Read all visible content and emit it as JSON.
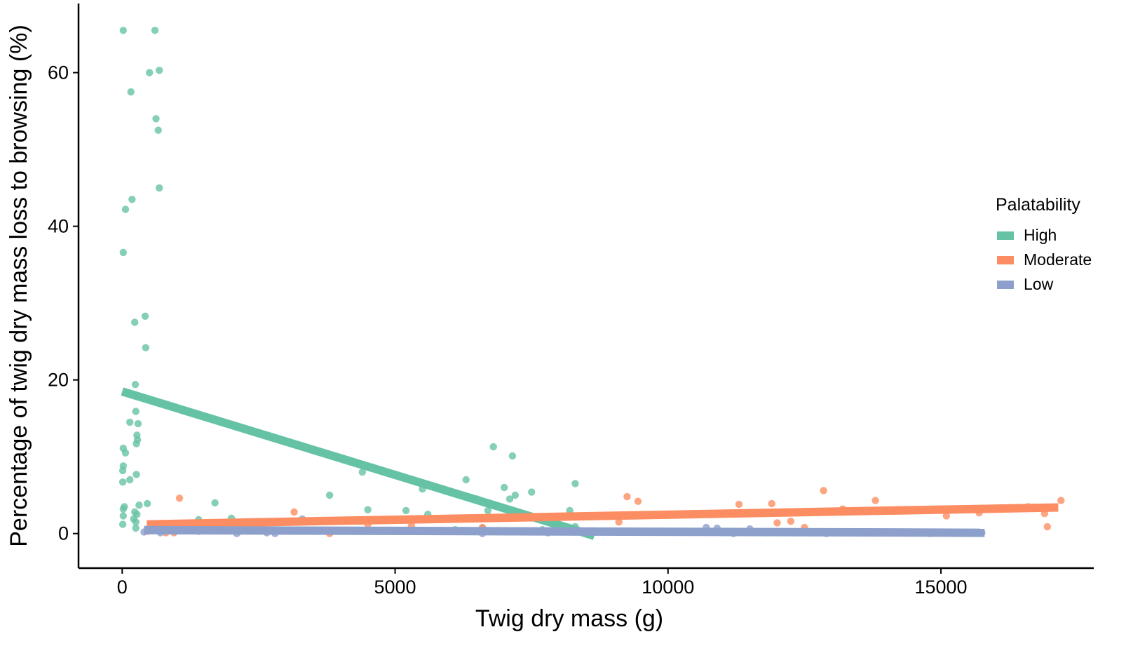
{
  "chart_data": {
    "type": "scatter",
    "title": "",
    "xlabel": "Twig dry mass (g)",
    "ylabel": "Percentage of twig dry mass loss to browsing (%)",
    "xlim": [
      -800,
      17800
    ],
    "ylim": [
      -4.5,
      69
    ],
    "x_ticks": [
      0,
      5000,
      10000,
      15000
    ],
    "x_tick_labels": [
      "0",
      "5000",
      "10000",
      "15000"
    ],
    "y_ticks": [
      0,
      20,
      40,
      60
    ],
    "y_tick_labels": [
      "0",
      "20",
      "40",
      "60"
    ],
    "grid": false,
    "legend": {
      "title": "Palatability",
      "placement": "right"
    },
    "series": [
      {
        "name": "High",
        "color": "#66c2a5",
        "points": [
          [
            20,
            65.5
          ],
          [
            600,
            65.5
          ],
          [
            500,
            60
          ],
          [
            680,
            60.3
          ],
          [
            160,
            57.5
          ],
          [
            620,
            54
          ],
          [
            660,
            52.5
          ],
          [
            680,
            45
          ],
          [
            180,
            43.5
          ],
          [
            60,
            42.2
          ],
          [
            20,
            36.6
          ],
          [
            420,
            28.3
          ],
          [
            230,
            27.5
          ],
          [
            430,
            24.2
          ],
          [
            240,
            19.4
          ],
          [
            250,
            15.9
          ],
          [
            140,
            14.5
          ],
          [
            290,
            14.3
          ],
          [
            270,
            12.8
          ],
          [
            280,
            12.2
          ],
          [
            260,
            11.7
          ],
          [
            20,
            11.1
          ],
          [
            60,
            10.5
          ],
          [
            20,
            8.8
          ],
          [
            10,
            8.2
          ],
          [
            260,
            7.7
          ],
          [
            140,
            7.0
          ],
          [
            10,
            6.7
          ],
          [
            40,
            3.5
          ],
          [
            20,
            3.2
          ],
          [
            310,
            3.7
          ],
          [
            460,
            3.9
          ],
          [
            230,
            2.8
          ],
          [
            270,
            2.5
          ],
          [
            210,
            1.9
          ],
          [
            20,
            2.3
          ],
          [
            250,
            1.5
          ],
          [
            10,
            1.2
          ],
          [
            250,
            0.7
          ],
          [
            1700,
            4.0
          ],
          [
            1400,
            1.8
          ],
          [
            2000,
            2.0
          ],
          [
            3800,
            5.0
          ],
          [
            4400,
            8.0
          ],
          [
            4500,
            3.1
          ],
          [
            5200,
            3.0
          ],
          [
            5600,
            2.5
          ],
          [
            5500,
            5.8
          ],
          [
            6300,
            7.0
          ],
          [
            6500,
            4.5
          ],
          [
            6700,
            3.0
          ],
          [
            6800,
            11.3
          ],
          [
            7000,
            6.0
          ],
          [
            7100,
            4.5
          ],
          [
            7150,
            10.1
          ],
          [
            7200,
            5.0
          ],
          [
            7500,
            5.4
          ],
          [
            8300,
            6.5
          ],
          [
            8200,
            3.0
          ],
          [
            8300,
            0.9
          ],
          [
            6600,
            0.7
          ],
          [
            7700,
            0.5
          ],
          [
            6100,
            0.5
          ]
        ],
        "trend": {
          "x": [
            0,
            8650
          ],
          "y": [
            18.5,
            -0.3
          ]
        }
      },
      {
        "name": "Moderate",
        "color": "#fc8d62",
        "points": [
          [
            470,
            0.3
          ],
          [
            800,
            0.1
          ],
          [
            950,
            0.1
          ],
          [
            1050,
            4.6
          ],
          [
            3150,
            2.8
          ],
          [
            3800,
            0.0
          ],
          [
            4500,
            1.2
          ],
          [
            5300,
            1.0
          ],
          [
            6600,
            0.8
          ],
          [
            9100,
            1.5
          ],
          [
            9250,
            4.8
          ],
          [
            9450,
            4.2
          ],
          [
            11300,
            3.8
          ],
          [
            11900,
            3.9
          ],
          [
            12000,
            1.4
          ],
          [
            12250,
            1.6
          ],
          [
            12500,
            0.8
          ],
          [
            12850,
            5.6
          ],
          [
            13200,
            3.2
          ],
          [
            13800,
            4.3
          ],
          [
            15100,
            2.3
          ],
          [
            15700,
            2.7
          ],
          [
            16600,
            3.5
          ],
          [
            16900,
            2.6
          ],
          [
            16950,
            0.9
          ],
          [
            17200,
            4.3
          ]
        ],
        "trend": {
          "x": [
            450,
            17150
          ],
          "y": [
            1.2,
            3.4
          ]
        }
      },
      {
        "name": "Low",
        "color": "#8da0cb",
        "points": [
          [
            400,
            0.2
          ],
          [
            700,
            0.1
          ],
          [
            1400,
            0.3
          ],
          [
            2100,
            0.0
          ],
          [
            2650,
            0.1
          ],
          [
            2800,
            0.0
          ],
          [
            3300,
            1.9
          ],
          [
            4700,
            0.4
          ],
          [
            5400,
            0.3
          ],
          [
            6600,
            0.0
          ],
          [
            7800,
            0.1
          ],
          [
            8300,
            0.2
          ],
          [
            10700,
            0.8
          ],
          [
            10900,
            0.7
          ],
          [
            11000,
            0.1
          ],
          [
            11200,
            0.0
          ],
          [
            11500,
            0.6
          ],
          [
            11800,
            0.1
          ],
          [
            12200,
            0.2
          ],
          [
            12900,
            0.0
          ],
          [
            13500,
            0.2
          ],
          [
            14200,
            0.1
          ],
          [
            14800,
            0.0
          ],
          [
            15200,
            0.1
          ],
          [
            15750,
            0.1
          ]
        ],
        "trend": {
          "x": [
            400,
            15800
          ],
          "y": [
            0.45,
            0.1
          ]
        }
      }
    ]
  }
}
